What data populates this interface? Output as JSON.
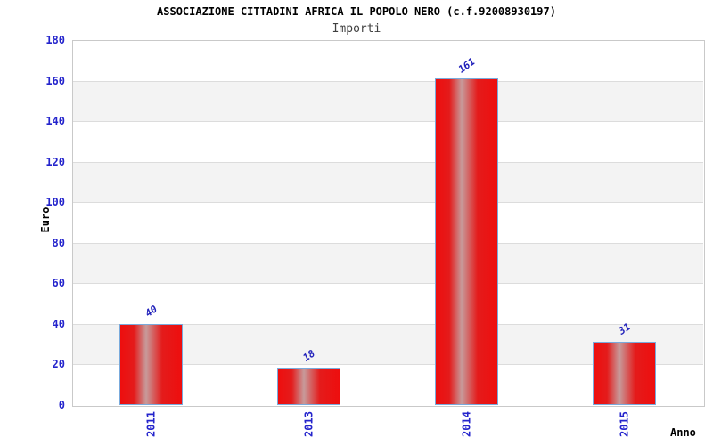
{
  "chart_data": {
    "type": "bar",
    "title": "ASSOCIAZIONE CITTADINI AFRICA IL POPOLO NERO (c.f.92008930197)",
    "subtitle": "Importi",
    "categories": [
      "2011",
      "2013",
      "2014",
      "2015"
    ],
    "values": [
      40,
      18,
      161,
      31
    ],
    "bar_value_labels": [
      "40",
      "18",
      "161",
      "31"
    ],
    "xlabel": "Anno",
    "ylabel": "Euro",
    "ylim": [
      0,
      180
    ],
    "ytick_interval": 20,
    "yticks": [
      0,
      20,
      40,
      60,
      80,
      100,
      120,
      140,
      160,
      180
    ],
    "grid": "horizontal-bands-alternating",
    "legend": "none",
    "colors": {
      "background": "#ffffff",
      "band_gray": "#f3f3f3",
      "gridline": "#dcdcdc",
      "plot_border": "#c9c9c9",
      "axis_text_blue": "#2424cc",
      "value_label_blue": "#2222bb",
      "title_text": "#000000",
      "subtitle_text": "#3f3f3f",
      "bar_edge_red": "#ee0e0e",
      "bar_mid_red": "#e41b1b",
      "bar_center_highlight": "#c79b9b",
      "bar_border_blue": "#79aadc"
    }
  }
}
